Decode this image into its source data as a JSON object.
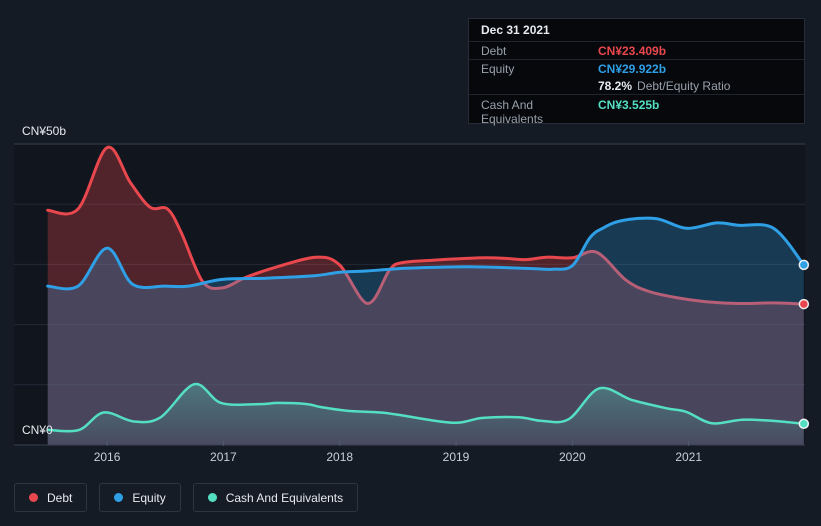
{
  "colors": {
    "page_bg": "#141b25",
    "plot_bg": "#10151e",
    "debt": "#e8484d",
    "equity": "#2f9fe6",
    "cash": "#55dfc2",
    "grid_strong": "#39404d",
    "grid_faint": "#232a36",
    "tick": "#515a6a",
    "tooltip_bg": "#06080c"
  },
  "y_axis": {
    "top_label": "CN¥50b",
    "bottom_label": "CN¥0"
  },
  "x_axis": {
    "years": [
      "2016",
      "2017",
      "2018",
      "2019",
      "2020",
      "2021"
    ]
  },
  "legend": {
    "items": [
      {
        "label": "Debt",
        "color": "#e8484d"
      },
      {
        "label": "Equity",
        "color": "#2f9fe6"
      },
      {
        "label": "Cash And Equivalents",
        "color": "#55dfc2"
      }
    ]
  },
  "tooltip": {
    "date": "Dec 31 2021",
    "debt_label": "Debt",
    "debt_value": "CN¥23.409b",
    "equity_label": "Equity",
    "equity_value": "CN¥29.922b",
    "ratio_value": "78.2%",
    "ratio_label": "Debt/Equity Ratio",
    "cash_label": "Cash And Equivalents",
    "cash_value": "CN¥3.525b"
  },
  "chart_data": {
    "type": "area",
    "x_unit": "year (decimal)",
    "y_unit": "CN¥ billions",
    "xlim": [
      2015.2,
      2022.0
    ],
    "ylim": [
      0,
      50
    ],
    "grid": true,
    "legend_position": "bottom",
    "series": [
      {
        "name": "Debt",
        "color": "#e8484d",
        "fill": "rgba(232,72,77,0.30)",
        "points": [
          [
            2015.49,
            39.0
          ],
          [
            2015.75,
            39.2
          ],
          [
            2016.0,
            49.4
          ],
          [
            2016.2,
            43.6
          ],
          [
            2016.37,
            39.5
          ],
          [
            2016.52,
            39.2
          ],
          [
            2016.64,
            35.2
          ],
          [
            2016.82,
            27.2
          ],
          [
            2016.99,
            26.1
          ],
          [
            2017.2,
            27.9
          ],
          [
            2017.48,
            29.7
          ],
          [
            2017.8,
            31.2
          ],
          [
            2018.0,
            29.9
          ],
          [
            2018.24,
            23.5
          ],
          [
            2018.43,
            29.1
          ],
          [
            2018.54,
            30.3
          ],
          [
            2018.8,
            30.7
          ],
          [
            2019.09,
            31.0
          ],
          [
            2019.26,
            31.1
          ],
          [
            2019.43,
            31.0
          ],
          [
            2019.6,
            30.8
          ],
          [
            2019.78,
            31.2
          ],
          [
            2020.0,
            31.1
          ],
          [
            2020.21,
            32.0
          ],
          [
            2020.46,
            27.4
          ],
          [
            2020.66,
            25.5
          ],
          [
            2020.92,
            24.4
          ],
          [
            2021.15,
            23.8
          ],
          [
            2021.43,
            23.5
          ],
          [
            2021.73,
            23.6
          ],
          [
            2021.99,
            23.409
          ]
        ]
      },
      {
        "name": "Equity",
        "color": "#2f9fe6",
        "fill": "rgba(47,159,230,0.27)",
        "points": [
          [
            2015.49,
            26.4
          ],
          [
            2015.75,
            26.4
          ],
          [
            2016.0,
            32.7
          ],
          [
            2016.22,
            26.7
          ],
          [
            2016.5,
            26.4
          ],
          [
            2016.7,
            26.4
          ],
          [
            2016.99,
            27.5
          ],
          [
            2017.37,
            27.7
          ],
          [
            2017.78,
            28.1
          ],
          [
            2018.0,
            28.7
          ],
          [
            2018.23,
            28.9
          ],
          [
            2018.51,
            29.3
          ],
          [
            2018.8,
            29.5
          ],
          [
            2019.09,
            29.6
          ],
          [
            2019.37,
            29.5
          ],
          [
            2019.66,
            29.3
          ],
          [
            2019.83,
            29.2
          ],
          [
            2020.0,
            29.8
          ],
          [
            2020.15,
            34.4
          ],
          [
            2020.26,
            36.0
          ],
          [
            2020.43,
            37.3
          ],
          [
            2020.72,
            37.6
          ],
          [
            2020.98,
            36.0
          ],
          [
            2021.24,
            36.9
          ],
          [
            2021.43,
            36.5
          ],
          [
            2021.73,
            36.0
          ],
          [
            2021.99,
            29.922
          ]
        ]
      },
      {
        "name": "Cash And Equivalents",
        "color": "#55dfc2",
        "fill": "gradient",
        "points": [
          [
            2015.49,
            2.5
          ],
          [
            2015.76,
            2.5
          ],
          [
            2015.97,
            5.4
          ],
          [
            2016.23,
            3.9
          ],
          [
            2016.46,
            4.6
          ],
          [
            2016.75,
            10.1
          ],
          [
            2016.98,
            7.0
          ],
          [
            2017.31,
            6.8
          ],
          [
            2017.47,
            7.0
          ],
          [
            2017.72,
            6.8
          ],
          [
            2017.84,
            6.3
          ],
          [
            2018.06,
            5.7
          ],
          [
            2018.35,
            5.4
          ],
          [
            2018.51,
            5.0
          ],
          [
            2018.97,
            3.7
          ],
          [
            2019.23,
            4.5
          ],
          [
            2019.54,
            4.6
          ],
          [
            2019.74,
            4.0
          ],
          [
            2019.97,
            4.3
          ],
          [
            2020.23,
            9.4
          ],
          [
            2020.51,
            7.5
          ],
          [
            2020.81,
            6.1
          ],
          [
            2020.98,
            5.5
          ],
          [
            2021.2,
            3.6
          ],
          [
            2021.46,
            4.2
          ],
          [
            2021.73,
            4.0
          ],
          [
            2021.99,
            3.525
          ]
        ]
      }
    ]
  }
}
